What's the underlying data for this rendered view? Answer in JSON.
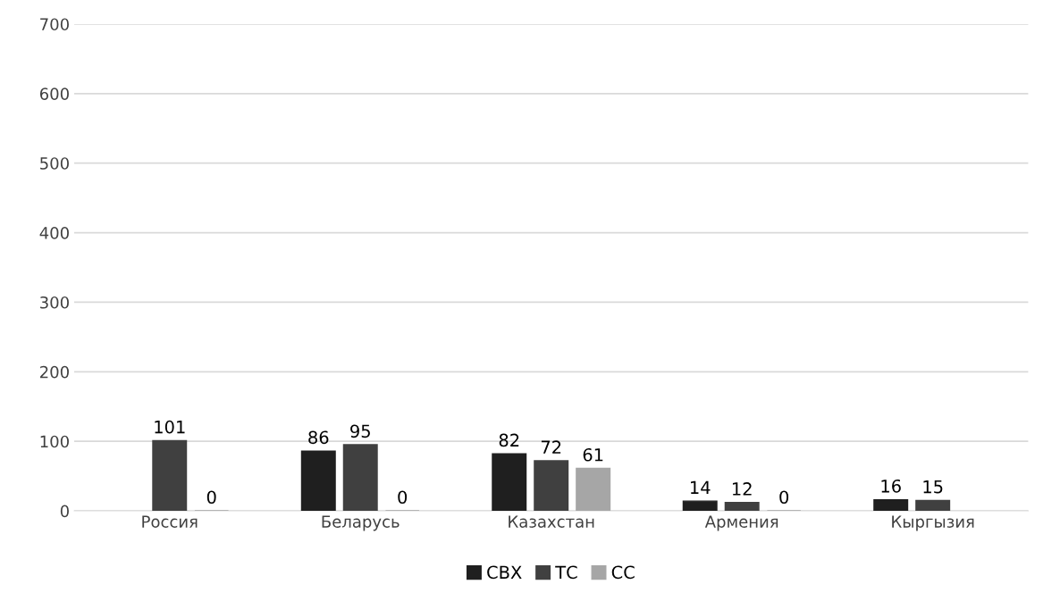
{
  "chart_data": {
    "type": "bar",
    "categories": [
      "Россия",
      "Беларусь",
      "Казахстан",
      "Армения",
      "Кыргызия"
    ],
    "series": [
      {
        "name": "СВХ",
        "color": "#1f1f1f",
        "values": [
          null,
          86,
          82,
          14,
          16
        ]
      },
      {
        "name": "ТС",
        "color": "#404040",
        "values": [
          101,
          95,
          72,
          12,
          15
        ]
      },
      {
        "name": "СС",
        "color": "#a6a6a6",
        "values": [
          0,
          0,
          61,
          0,
          null
        ]
      }
    ],
    "ylim": [
      0,
      700
    ],
    "yticks": [
      0,
      100,
      200,
      300,
      400,
      500,
      600,
      700
    ],
    "grid": "y",
    "legend": "bottom",
    "data_labels": true
  }
}
